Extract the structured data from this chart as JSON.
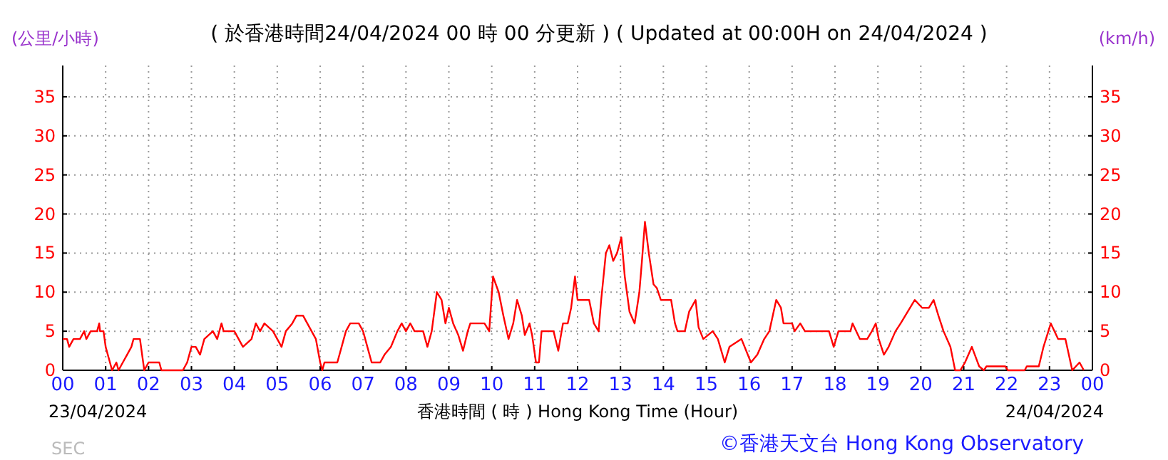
{
  "chart_data": {
    "type": "line",
    "title": "( 於香港時間24/04/2024 00 時 00 分更新 ) ( Updated at 00:00H on 24/04/2024 )",
    "ylabel": "(公里/小時)",
    "y2label": "(km/h)",
    "xlabel": "香港時間 ( 時 ) Hong Kong Time (Hour)",
    "annotations": [
      "23/04/2024",
      "24/04/2024",
      "©香港天文台 Hong Kong Observatory",
      "SEC"
    ],
    "xlim": [
      0,
      24
    ],
    "xticks": [
      {
        "value": 0,
        "label": "00"
      },
      {
        "value": 1,
        "label": "01"
      },
      {
        "value": 2,
        "label": "02"
      },
      {
        "value": 3,
        "label": "03"
      },
      {
        "value": 4,
        "label": "04"
      },
      {
        "value": 5,
        "label": "05"
      },
      {
        "value": 6,
        "label": "06"
      },
      {
        "value": 7,
        "label": "07"
      },
      {
        "value": 8,
        "label": "08"
      },
      {
        "value": 9,
        "label": "09"
      },
      {
        "value": 10,
        "label": "10"
      },
      {
        "value": 11,
        "label": "11"
      },
      {
        "value": 12,
        "label": "12"
      },
      {
        "value": 13,
        "label": "13"
      },
      {
        "value": 14,
        "label": "14"
      },
      {
        "value": 15,
        "label": "15"
      },
      {
        "value": 16,
        "label": "16"
      },
      {
        "value": 17,
        "label": "17"
      },
      {
        "value": 18,
        "label": "18"
      },
      {
        "value": 19,
        "label": "19"
      },
      {
        "value": 20,
        "label": "20"
      },
      {
        "value": 21,
        "label": "21"
      },
      {
        "value": 22,
        "label": "22"
      },
      {
        "value": 23,
        "label": "23"
      },
      {
        "value": 24,
        "label": "00"
      }
    ],
    "ylim": [
      0,
      39
    ],
    "yticks": [
      0,
      5,
      10,
      15,
      20,
      25,
      30,
      35
    ],
    "y2lim": [
      0,
      39
    ],
    "y2ticks": [
      0,
      5,
      10,
      15,
      20,
      25,
      30,
      35
    ],
    "grid": true,
    "marker": "none",
    "line_style": "solid",
    "series": [
      {
        "color": "#ff0000",
        "x": [
          0,
          0.1,
          0.15,
          0.25,
          0.4,
          0.5,
          0.55,
          0.65,
          0.8,
          0.85,
          0.87,
          0.95,
          1.0,
          1.1,
          1.15,
          1.25,
          1.3,
          1.4,
          1.5,
          1.6,
          1.65,
          1.8,
          1.85,
          1.9,
          2.0,
          2.25,
          2.3,
          2.8,
          2.9,
          3.0,
          3.1,
          3.2,
          3.3,
          3.5,
          3.6,
          3.7,
          3.75,
          4.0,
          4.1,
          4.2,
          4.4,
          4.5,
          4.6,
          4.7,
          4.9,
          5.0,
          5.1,
          5.2,
          5.35,
          5.45,
          5.6,
          5.7,
          5.8,
          5.9,
          6.0,
          6.05,
          6.1,
          6.4,
          6.5,
          6.6,
          6.7,
          6.9,
          7.0,
          7.1,
          7.2,
          7.4,
          7.5,
          7.65,
          7.8,
          7.9,
          8.0,
          8.1,
          8.2,
          8.4,
          8.5,
          8.6,
          8.72,
          8.83,
          8.92,
          9.0,
          9.1,
          9.22,
          9.33,
          9.44,
          9.5,
          9.67,
          9.83,
          9.94,
          10.03,
          10.16,
          10.27,
          10.39,
          10.5,
          10.59,
          10.7,
          10.77,
          10.88,
          10.94,
          11.03,
          11.1,
          11.16,
          11.44,
          11.55,
          11.66,
          11.77,
          11.85,
          11.94,
          12.0,
          12.27,
          12.38,
          12.49,
          12.55,
          12.66,
          12.74,
          12.83,
          12.92,
          13.02,
          13.1,
          13.21,
          13.33,
          13.44,
          13.5,
          13.57,
          13.66,
          13.77,
          13.85,
          13.94,
          14.05,
          14.18,
          14.27,
          14.33,
          14.5,
          14.6,
          14.75,
          14.82,
          14.93,
          15.15,
          15.27,
          15.43,
          15.54,
          15.82,
          16.04,
          16.19,
          16.35,
          16.47,
          16.63,
          16.74,
          16.8,
          17.0,
          17.06,
          17.19,
          17.3,
          17.86,
          17.97,
          18.08,
          18.36,
          18.41,
          18.58,
          18.75,
          18.86,
          18.95,
          19.02,
          19.14,
          19.25,
          19.41,
          19.53,
          19.64,
          19.86,
          20.03,
          20.19,
          20.3,
          20.41,
          20.53,
          20.69,
          20.8,
          20.92,
          21.03,
          21.19,
          21.36,
          21.47,
          21.53,
          21.97,
          22.03,
          22.42,
          22.47,
          22.75,
          22.86,
          23.03,
          23.2,
          23.37,
          23.53,
          23.7,
          23.8
        ],
        "values": [
          4,
          4,
          3,
          4,
          4,
          5,
          4,
          5,
          5,
          6,
          5,
          5,
          3,
          1,
          0,
          1,
          0,
          1,
          2,
          3,
          4,
          4,
          2,
          0,
          1,
          1,
          0,
          0,
          1,
          3,
          3,
          2,
          4,
          5,
          4,
          6,
          5,
          5,
          4,
          3,
          4,
          6,
          5,
          6,
          5,
          4,
          3,
          5,
          6,
          7,
          7,
          6,
          5,
          4,
          1,
          0,
          1,
          1,
          3,
          5,
          6,
          6,
          5,
          3,
          1,
          1,
          2,
          3,
          5,
          6,
          5,
          6,
          5,
          5,
          3,
          5,
          10,
          9,
          6,
          8,
          6,
          4.5,
          2.5,
          5,
          6,
          6,
          6,
          5,
          12,
          10,
          7,
          4,
          6,
          9,
          7,
          4.5,
          6,
          4.5,
          1,
          1,
          5,
          5,
          2.5,
          6,
          6,
          8,
          12,
          9,
          9,
          6,
          5,
          9,
          15,
          16,
          14,
          15,
          17,
          12,
          7.5,
          6,
          10,
          14,
          19,
          15,
          11,
          10.5,
          9,
          9,
          9,
          6,
          5,
          5,
          7.5,
          9,
          5.5,
          4,
          5,
          4,
          1,
          3,
          4,
          1,
          2,
          4,
          5,
          9,
          8,
          6,
          6,
          5,
          6,
          5,
          5,
          3,
          5,
          5,
          6,
          4,
          4,
          5,
          6,
          4,
          2,
          3,
          5,
          6,
          7,
          9,
          8,
          8,
          9,
          7,
          5,
          3,
          0,
          0,
          1,
          3,
          0.5,
          0,
          0.5,
          0.5,
          0,
          0,
          0.5,
          0.5,
          3,
          6,
          4,
          4,
          0,
          1,
          0
        ]
      }
    ]
  }
}
